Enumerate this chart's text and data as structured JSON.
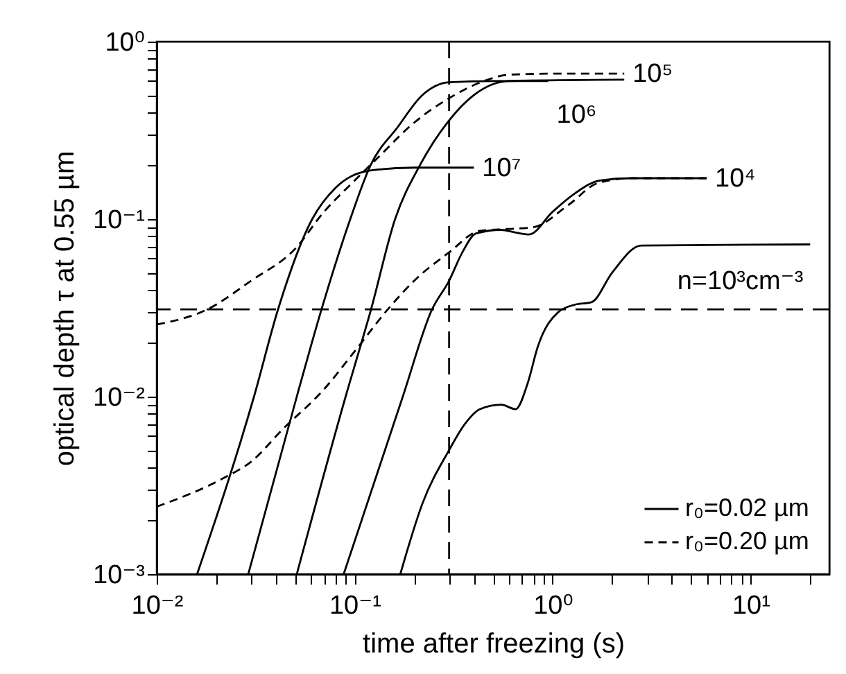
{
  "chart_data": {
    "type": "line",
    "xlabel": "time after freezing (s)",
    "ylabel": "optical depth τ at 0.55 µm",
    "log": "xy",
    "grid": false,
    "marker": "none",
    "legend": "bottom right",
    "xlim": [
      0.01,
      25
    ],
    "ylim": [
      0.001,
      1
    ],
    "xticks": [
      {
        "value": 0.01,
        "label": "10⁻²"
      },
      {
        "value": 0.02,
        "label": null
      },
      {
        "value": 0.03,
        "label": null
      },
      {
        "value": 0.04,
        "label": null
      },
      {
        "value": 0.05,
        "label": null
      },
      {
        "value": 0.06,
        "label": null
      },
      {
        "value": 0.07,
        "label": null
      },
      {
        "value": 0.08,
        "label": null
      },
      {
        "value": 0.09,
        "label": null
      },
      {
        "value": 0.1,
        "label": "10⁻¹"
      },
      {
        "value": 0.2,
        "label": null
      },
      {
        "value": 0.3,
        "label": null
      },
      {
        "value": 0.4,
        "label": null
      },
      {
        "value": 0.5,
        "label": null
      },
      {
        "value": 0.6,
        "label": null
      },
      {
        "value": 0.7,
        "label": null
      },
      {
        "value": 0.8,
        "label": null
      },
      {
        "value": 0.9,
        "label": null
      },
      {
        "value": 1,
        "label": "10⁰"
      },
      {
        "value": 2,
        "label": null
      },
      {
        "value": 3,
        "label": null
      },
      {
        "value": 4,
        "label": null
      },
      {
        "value": 5,
        "label": null
      },
      {
        "value": 6,
        "label": null
      },
      {
        "value": 7,
        "label": null
      },
      {
        "value": 8,
        "label": null
      },
      {
        "value": 9,
        "label": null
      },
      {
        "value": 10,
        "label": "10¹"
      },
      {
        "value": 20,
        "label": null
      }
    ],
    "yticks": [
      {
        "value": 0.001,
        "label": "10⁻³"
      },
      {
        "value": 0.002,
        "label": null
      },
      {
        "value": 0.003,
        "label": null
      },
      {
        "value": 0.004,
        "label": null
      },
      {
        "value": 0.005,
        "label": null
      },
      {
        "value": 0.006,
        "label": null
      },
      {
        "value": 0.007,
        "label": null
      },
      {
        "value": 0.008,
        "label": null
      },
      {
        "value": 0.009,
        "label": null
      },
      {
        "value": 0.01,
        "label": "10⁻²"
      },
      {
        "value": 0.02,
        "label": null
      },
      {
        "value": 0.03,
        "label": null
      },
      {
        "value": 0.04,
        "label": null
      },
      {
        "value": 0.05,
        "label": null
      },
      {
        "value": 0.06,
        "label": null
      },
      {
        "value": 0.07,
        "label": null
      },
      {
        "value": 0.08,
        "label": null
      },
      {
        "value": 0.09,
        "label": null
      },
      {
        "value": 0.1,
        "label": "10⁻¹"
      },
      {
        "value": 0.2,
        "label": null
      },
      {
        "value": 0.3,
        "label": null
      },
      {
        "value": 0.4,
        "label": null
      },
      {
        "value": 0.5,
        "label": null
      },
      {
        "value": 0.6,
        "label": null
      },
      {
        "value": 0.7,
        "label": null
      },
      {
        "value": 0.8,
        "label": null
      },
      {
        "value": 0.9,
        "label": null
      },
      {
        "value": 1,
        "label": "10⁰"
      }
    ],
    "ref_lines": [
      {
        "axis": "y",
        "value": 0.031,
        "line_style": "dashed",
        "color": "#000000"
      },
      {
        "axis": "x",
        "value": 0.3,
        "line_style": "dashed",
        "color": "#000000"
      }
    ],
    "annotations": [
      {
        "text": "10⁵",
        "x": 2.3,
        "y": 0.66
      },
      {
        "text": "10⁶",
        "x": 0.95,
        "y": 0.6
      },
      {
        "text": "10⁷",
        "x": 0.4,
        "y": 0.195
      },
      {
        "text": "10⁴",
        "x": 6.0,
        "y": 0.17
      },
      {
        "text": "n=10³cm⁻³",
        "x": 20,
        "y": 0.072
      }
    ],
    "series": [
      {
        "name": "r₀=0.02 µm",
        "color": "#000000",
        "line_style": "solid",
        "x": [
          0.016,
          0.031,
          0.041,
          0.061,
          0.08,
          0.1,
          0.13,
          0.2,
          0.4
        ],
        "values": [
          0.001,
          0.01,
          0.031,
          0.1,
          0.15,
          0.178,
          0.19,
          0.195,
          0.195
        ]
      },
      {
        "color": "#000000",
        "line_style": "solid",
        "x": [
          0.029,
          0.051,
          0.068,
          0.095,
          0.12,
          0.165,
          0.22,
          0.3,
          0.5,
          0.95
        ],
        "values": [
          0.001,
          0.01,
          0.031,
          0.1,
          0.2,
          0.33,
          0.5,
          0.59,
          0.6,
          0.6
        ]
      },
      {
        "color": "#000000",
        "line_style": "solid",
        "x": [
          0.051,
          0.09,
          0.121,
          0.16,
          0.213,
          0.3,
          0.4,
          0.6,
          2.3
        ],
        "values": [
          0.001,
          0.01,
          0.031,
          0.1,
          0.2,
          0.36,
          0.5,
          0.6,
          0.61
        ]
      },
      {
        "color": "#000000",
        "line_style": "solid",
        "x": [
          0.088,
          0.175,
          0.246,
          0.3,
          0.35,
          0.41,
          0.55,
          0.65,
          0.76,
          1.0,
          1.3,
          1.73,
          2.5,
          6.0
        ],
        "values": [
          0.001,
          0.01,
          0.031,
          0.045,
          0.065,
          0.083,
          0.087,
          0.084,
          0.082,
          0.11,
          0.14,
          0.165,
          0.17,
          0.17
        ]
      },
      {
        "color": "#000000",
        "line_style": "solid",
        "x": [
          0.17,
          0.22,
          0.3,
          0.36,
          0.43,
          0.55,
          0.65,
          0.75,
          0.84,
          1.07,
          1.3,
          1.57,
          2.0,
          2.8,
          20
        ],
        "values": [
          0.001,
          0.0025,
          0.005,
          0.007,
          0.0085,
          0.009,
          0.0085,
          0.012,
          0.019,
          0.03,
          0.033,
          0.034,
          0.05,
          0.071,
          0.072
        ]
      },
      {
        "name": "r₀=0.20 µm",
        "color": "#000000",
        "line_style": "dashed",
        "x": [
          0.01,
          0.018,
          0.03,
          0.05,
          0.07,
          0.1,
          0.13,
          0.2,
          0.3,
          0.45,
          0.6,
          1.0,
          2.3
        ],
        "values": [
          0.0255,
          0.031,
          0.045,
          0.068,
          0.11,
          0.165,
          0.22,
          0.35,
          0.48,
          0.6,
          0.65,
          0.66,
          0.66
        ]
      },
      {
        "color": "#000000",
        "line_style": "dashed",
        "x": [
          0.01,
          0.022,
          0.03,
          0.043,
          0.07,
          0.1,
          0.147,
          0.2,
          0.3,
          0.43,
          0.6,
          0.8,
          1.2,
          1.7,
          2.5,
          6.0
        ],
        "values": [
          0.0024,
          0.0035,
          0.0043,
          0.0065,
          0.011,
          0.018,
          0.031,
          0.045,
          0.065,
          0.086,
          0.088,
          0.09,
          0.12,
          0.16,
          0.17,
          0.17
        ]
      }
    ]
  }
}
